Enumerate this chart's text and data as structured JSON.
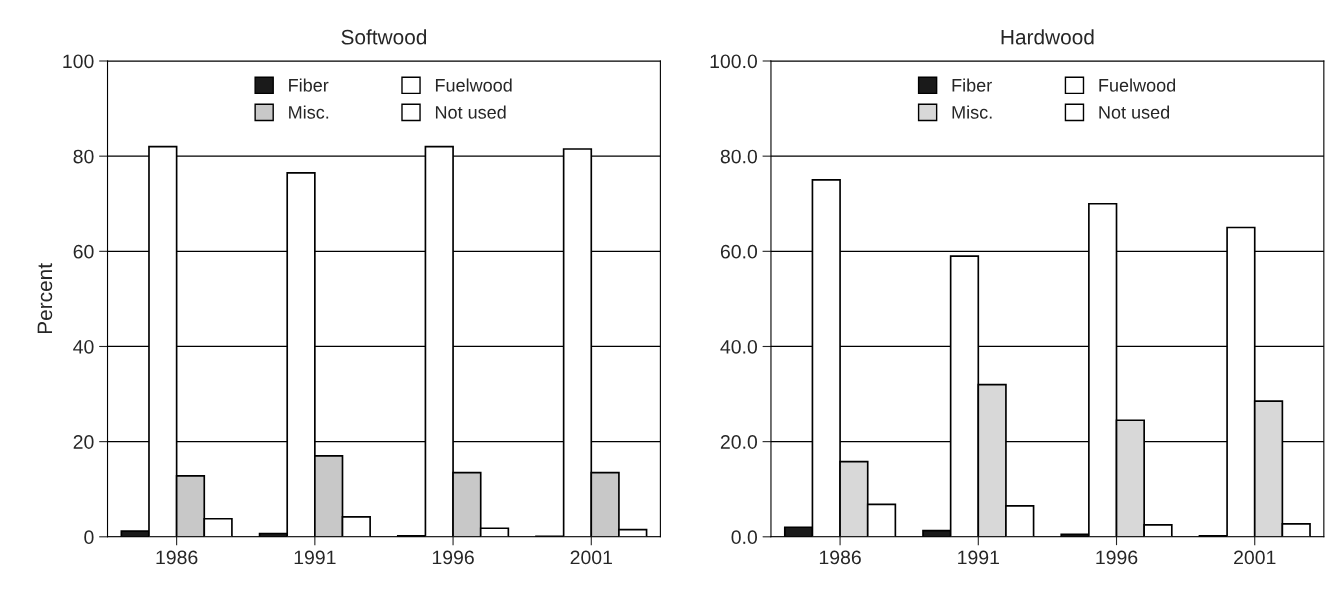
{
  "chart_data": [
    {
      "type": "bar",
      "title": "Softwood",
      "ylabel": "Percent",
      "categories": [
        "1986",
        "1991",
        "1996",
        "2001"
      ],
      "ylim": [
        0,
        100
      ],
      "yticks": [
        0,
        20,
        40,
        60,
        80,
        100
      ],
      "grid": "y",
      "legend": "top",
      "series": [
        {
          "name": "Fiber",
          "color": "#1a1a1a",
          "values": [
            1.2,
            0.7,
            0.2,
            0.1
          ]
        },
        {
          "name": "Fuelwood",
          "color": "#ffffff",
          "values": [
            82,
            76.5,
            82,
            81.5
          ]
        },
        {
          "name": "Misc.",
          "color": "#c8c8c8",
          "values": [
            12.8,
            17,
            13.5,
            13.5
          ]
        },
        {
          "name": "Not used",
          "color": "#ffffff",
          "values": [
            3.8,
            4.2,
            1.8,
            1.5
          ]
        }
      ]
    },
    {
      "type": "bar",
      "title": "Hardwood",
      "categories": [
        "1986",
        "1991",
        "1996",
        "2001"
      ],
      "ylim": [
        0,
        100
      ],
      "yticks": [
        {
          "value": 0,
          "label": "0.0"
        },
        {
          "value": 20,
          "label": "20.0"
        },
        {
          "value": 40,
          "label": "40.0"
        },
        {
          "value": 60,
          "label": "60.0"
        },
        {
          "value": 80,
          "label": "80.0"
        },
        {
          "value": 100,
          "label": "100.0"
        }
      ],
      "grid": "y",
      "legend": "top",
      "series": [
        {
          "name": "Fiber",
          "color": "#1a1a1a",
          "values": [
            2.0,
            1.3,
            0.5,
            0.2
          ]
        },
        {
          "name": "Fuelwood",
          "color": "#ffffff",
          "values": [
            75,
            59,
            70,
            65
          ]
        },
        {
          "name": "Misc.",
          "color": "#d8d8d8",
          "values": [
            15.8,
            32,
            24.5,
            28.5
          ]
        },
        {
          "name": "Not used",
          "color": "#ffffff",
          "values": [
            6.8,
            6.5,
            2.5,
            2.7
          ]
        }
      ]
    }
  ]
}
